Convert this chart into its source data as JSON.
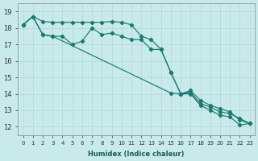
{
  "xlabel": "Humidex (Indice chaleur)",
  "background_color": "#c8eaea",
  "grid_color": "#b0d8d8",
  "line_color": "#1a7a6e",
  "xlim": [
    -0.5,
    23.5
  ],
  "ylim": [
    11.5,
    19.5
  ],
  "yticks": [
    12,
    13,
    14,
    15,
    16,
    17,
    18,
    19
  ],
  "xticks": [
    0,
    1,
    2,
    3,
    4,
    5,
    6,
    7,
    8,
    9,
    10,
    11,
    12,
    13,
    14,
    15,
    16,
    17,
    18,
    19,
    20,
    21,
    22,
    23
  ],
  "line_flat_x": [
    0,
    1,
    2,
    3,
    4,
    5,
    6,
    7,
    8,
    9,
    10,
    11,
    12,
    13,
    14,
    15,
    16,
    17,
    18,
    19,
    20,
    21,
    22,
    23
  ],
  "line_flat_y": [
    18.2,
    18.7,
    18.4,
    18.35,
    18.35,
    18.35,
    18.35,
    18.35,
    18.35,
    18.4,
    18.35,
    18.2,
    17.5,
    17.3,
    16.7,
    15.3,
    14.0,
    14.0,
    13.3,
    13.0,
    12.7,
    12.6,
    12.1,
    12.2
  ],
  "line_jagged_x": [
    0,
    1,
    2,
    3,
    4,
    5,
    6,
    7,
    8,
    9,
    10,
    11,
    12,
    13,
    14,
    15,
    16,
    17,
    18,
    19,
    20,
    21,
    22,
    23
  ],
  "line_jagged_y": [
    18.2,
    18.7,
    17.6,
    17.5,
    17.5,
    17.0,
    17.2,
    18.0,
    17.6,
    17.7,
    17.5,
    17.3,
    17.3,
    16.7,
    16.7,
    15.3,
    14.0,
    14.2,
    13.6,
    13.3,
    13.1,
    12.9,
    12.4,
    12.2
  ],
  "line_diag_x": [
    0,
    1,
    2,
    3,
    15,
    16,
    17,
    18,
    19,
    20,
    21,
    22,
    23
  ],
  "line_diag_y": [
    18.2,
    18.7,
    17.6,
    17.5,
    14.05,
    14.0,
    14.1,
    13.4,
    13.2,
    12.9,
    12.8,
    12.5,
    12.2
  ]
}
